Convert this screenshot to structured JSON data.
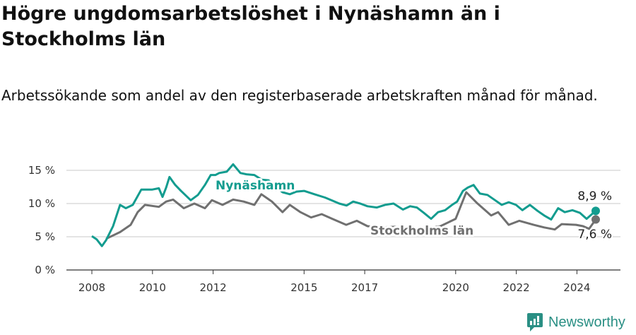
{
  "header": {
    "title": "Högre ungdomsarbetslöshet i Nynäshamn än i Stockholms län",
    "subtitle": "Arbetssökande som andel av den registerbaserade arbetskraften månad för månad."
  },
  "brand": {
    "name": "Newsworthy",
    "icon": "bar-chart-speech-icon",
    "color": "#2a8f84"
  },
  "chart_data": {
    "type": "line",
    "title": "Högre ungdomsarbetslöshet i Nynäshamn än i Stockholms län",
    "xlabel": "",
    "ylabel": "",
    "xlim": [
      2007.3,
      2025.5
    ],
    "ylim": [
      0,
      16
    ],
    "grid": true,
    "y_ticks": [
      {
        "v": 0,
        "label": "0 %"
      },
      {
        "v": 5,
        "label": "5 %"
      },
      {
        "v": 10,
        "label": "10 %"
      },
      {
        "v": 15,
        "label": "15 %"
      }
    ],
    "x_ticks": [
      {
        "v": 2008,
        "label": "2008"
      },
      {
        "v": 2010,
        "label": "2010"
      },
      {
        "v": 2012,
        "label": "2012"
      },
      {
        "v": 2015,
        "label": "2015"
      },
      {
        "v": 2017,
        "label": "2017"
      },
      {
        "v": 2020,
        "label": "2020"
      },
      {
        "v": 2022,
        "label": "2022"
      },
      {
        "v": 2024,
        "label": "2024"
      }
    ],
    "series": [
      {
        "name": "Nynäshamn",
        "color": "#139c8f",
        "end_label": "8,9 %",
        "points": [
          [
            2008.0,
            5.1
          ],
          [
            2008.16,
            4.6
          ],
          [
            2008.33,
            3.6
          ],
          [
            2008.47,
            4.5
          ],
          [
            2008.7,
            6.6
          ],
          [
            2008.93,
            9.8
          ],
          [
            2009.12,
            9.3
          ],
          [
            2009.35,
            9.8
          ],
          [
            2009.63,
            12.1
          ],
          [
            2009.98,
            12.1
          ],
          [
            2010.21,
            12.3
          ],
          [
            2010.33,
            11.0
          ],
          [
            2010.45,
            12.4
          ],
          [
            2010.56,
            14.0
          ],
          [
            2010.75,
            12.8
          ],
          [
            2010.94,
            11.9
          ],
          [
            2011.26,
            10.5
          ],
          [
            2011.5,
            11.3
          ],
          [
            2011.73,
            12.8
          ],
          [
            2011.92,
            14.3
          ],
          [
            2012.08,
            14.3
          ],
          [
            2012.2,
            14.6
          ],
          [
            2012.45,
            14.8
          ],
          [
            2012.66,
            15.9
          ],
          [
            2012.9,
            14.6
          ],
          [
            2013.1,
            14.4
          ],
          [
            2013.36,
            14.3
          ],
          [
            2013.6,
            13.6
          ],
          [
            2013.83,
            13.5
          ],
          [
            2014.05,
            12.6
          ],
          [
            2014.29,
            11.7
          ],
          [
            2014.53,
            11.4
          ],
          [
            2014.75,
            11.8
          ],
          [
            2015.0,
            11.9
          ],
          [
            2015.34,
            11.4
          ],
          [
            2015.69,
            10.9
          ],
          [
            2015.9,
            10.5
          ],
          [
            2016.16,
            10.0
          ],
          [
            2016.4,
            9.7
          ],
          [
            2016.62,
            10.3
          ],
          [
            2016.85,
            10.0
          ],
          [
            2017.09,
            9.6
          ],
          [
            2017.4,
            9.4
          ],
          [
            2017.67,
            9.8
          ],
          [
            2017.95,
            10.0
          ],
          [
            2018.26,
            9.1
          ],
          [
            2018.5,
            9.6
          ],
          [
            2018.72,
            9.4
          ],
          [
            2018.95,
            8.6
          ],
          [
            2019.19,
            7.7
          ],
          [
            2019.42,
            8.7
          ],
          [
            2019.65,
            9.0
          ],
          [
            2019.88,
            9.8
          ],
          [
            2020.05,
            10.3
          ],
          [
            2020.24,
            11.9
          ],
          [
            2020.4,
            12.4
          ],
          [
            2020.59,
            12.8
          ],
          [
            2020.8,
            11.5
          ],
          [
            2021.05,
            11.3
          ],
          [
            2021.3,
            10.5
          ],
          [
            2021.52,
            9.8
          ],
          [
            2021.75,
            10.2
          ],
          [
            2021.99,
            9.8
          ],
          [
            2022.2,
            9.0
          ],
          [
            2022.45,
            9.8
          ],
          [
            2022.7,
            8.9
          ],
          [
            2022.92,
            8.2
          ],
          [
            2023.15,
            7.6
          ],
          [
            2023.38,
            9.3
          ],
          [
            2023.6,
            8.7
          ],
          [
            2023.85,
            9.0
          ],
          [
            2024.1,
            8.6
          ],
          [
            2024.32,
            7.7
          ],
          [
            2024.62,
            8.9
          ]
        ]
      },
      {
        "name": "Stockholms län",
        "color": "#707070",
        "end_label": "7,6 %",
        "points": [
          [
            2008.47,
            4.7
          ],
          [
            2008.93,
            5.7
          ],
          [
            2009.28,
            6.8
          ],
          [
            2009.51,
            8.7
          ],
          [
            2009.75,
            9.8
          ],
          [
            2010.21,
            9.5
          ],
          [
            2010.45,
            10.3
          ],
          [
            2010.68,
            10.6
          ],
          [
            2011.03,
            9.3
          ],
          [
            2011.38,
            10.0
          ],
          [
            2011.73,
            9.3
          ],
          [
            2011.96,
            10.5
          ],
          [
            2012.31,
            9.8
          ],
          [
            2012.66,
            10.6
          ],
          [
            2013.01,
            10.3
          ],
          [
            2013.36,
            9.8
          ],
          [
            2013.59,
            11.4
          ],
          [
            2013.94,
            10.3
          ],
          [
            2014.29,
            8.7
          ],
          [
            2014.53,
            9.8
          ],
          [
            2014.88,
            8.7
          ],
          [
            2015.23,
            7.9
          ],
          [
            2015.58,
            8.4
          ],
          [
            2015.93,
            7.7
          ],
          [
            2016.39,
            6.8
          ],
          [
            2016.74,
            7.4
          ],
          [
            2017.09,
            6.6
          ],
          [
            2017.55,
            6.4
          ],
          [
            2018.0,
            6.5
          ],
          [
            2018.5,
            6.3
          ],
          [
            2019.0,
            6.2
          ],
          [
            2019.5,
            6.6
          ],
          [
            2020.0,
            7.7
          ],
          [
            2020.35,
            11.7
          ],
          [
            2020.7,
            10.1
          ],
          [
            2021.17,
            8.2
          ],
          [
            2021.4,
            8.7
          ],
          [
            2021.75,
            6.8
          ],
          [
            2022.1,
            7.4
          ],
          [
            2022.57,
            6.8
          ],
          [
            2022.92,
            6.4
          ],
          [
            2023.27,
            6.1
          ],
          [
            2023.5,
            6.9
          ],
          [
            2023.97,
            6.8
          ],
          [
            2024.2,
            6.6
          ],
          [
            2024.4,
            6.2
          ],
          [
            2024.62,
            7.6
          ]
        ]
      }
    ]
  }
}
